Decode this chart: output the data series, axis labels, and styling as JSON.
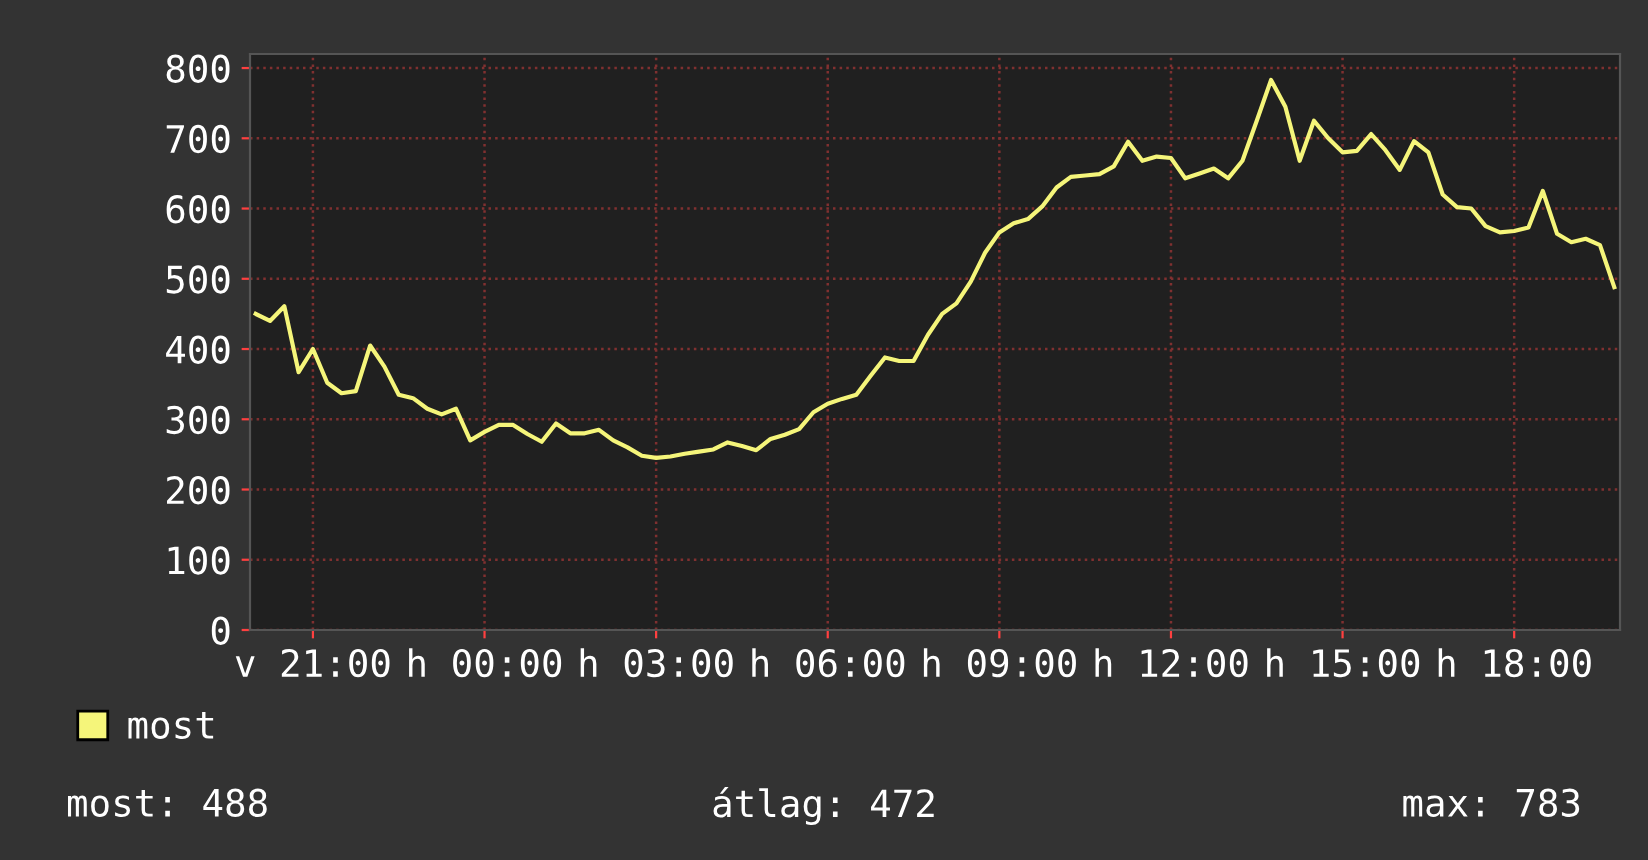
{
  "chart_data": {
    "type": "line",
    "categories": [
      null,
      null,
      null,
      null,
      "v 21:00",
      null,
      null,
      null,
      null,
      null,
      null,
      null,
      null,
      null,
      null,
      null,
      "h 00:00",
      null,
      null,
      null,
      null,
      null,
      null,
      null,
      null,
      null,
      null,
      null,
      "h 03:00",
      null,
      null,
      null,
      null,
      null,
      null,
      null,
      null,
      null,
      null,
      null,
      "h 06:00",
      null,
      null,
      null,
      null,
      null,
      null,
      null,
      null,
      null,
      null,
      null,
      "h 09:00",
      null,
      null,
      null,
      null,
      null,
      null,
      null,
      null,
      null,
      null,
      null,
      "h 12:00",
      null,
      null,
      null,
      null,
      null,
      null,
      null,
      null,
      null,
      null,
      null,
      "h 15:00",
      null,
      null,
      null,
      null,
      null,
      null,
      null,
      null,
      null,
      null,
      null,
      "h 18:00",
      null,
      null,
      null,
      null,
      null,
      null,
      null
    ],
    "series": [
      {
        "name": "most",
        "color": "#f5f57a",
        "values": [
          450,
          440,
          461,
          367,
          400,
          352,
          337,
          340,
          405,
          375,
          335,
          330,
          315,
          307,
          315,
          270,
          282,
          292,
          292,
          279,
          268,
          294,
          280,
          280,
          285,
          270,
          260,
          248,
          245,
          247,
          251,
          254,
          257,
          267,
          262,
          256,
          272,
          278,
          286,
          310,
          322,
          329,
          335,
          362,
          388,
          383,
          383,
          420,
          450,
          465,
          496,
          537,
          566,
          579,
          585,
          603,
          630,
          645,
          647,
          649,
          660,
          695,
          668,
          674,
          672,
          643,
          650,
          657,
          643,
          668,
          725,
          783,
          745,
          668,
          725,
          700,
          680,
          682,
          706,
          683,
          655,
          696,
          680,
          620,
          602,
          600,
          575,
          566,
          568,
          573,
          625,
          564,
          552,
          557,
          548,
          488
        ]
      }
    ],
    "ylim": [
      0,
      820
    ],
    "yticks": [
      0,
      100,
      200,
      300,
      400,
      500,
      600,
      700,
      800
    ],
    "grid": true,
    "legend": "bottom left",
    "annotations": [
      "most: 488",
      "átlag: 472",
      "max: 783"
    ]
  }
}
